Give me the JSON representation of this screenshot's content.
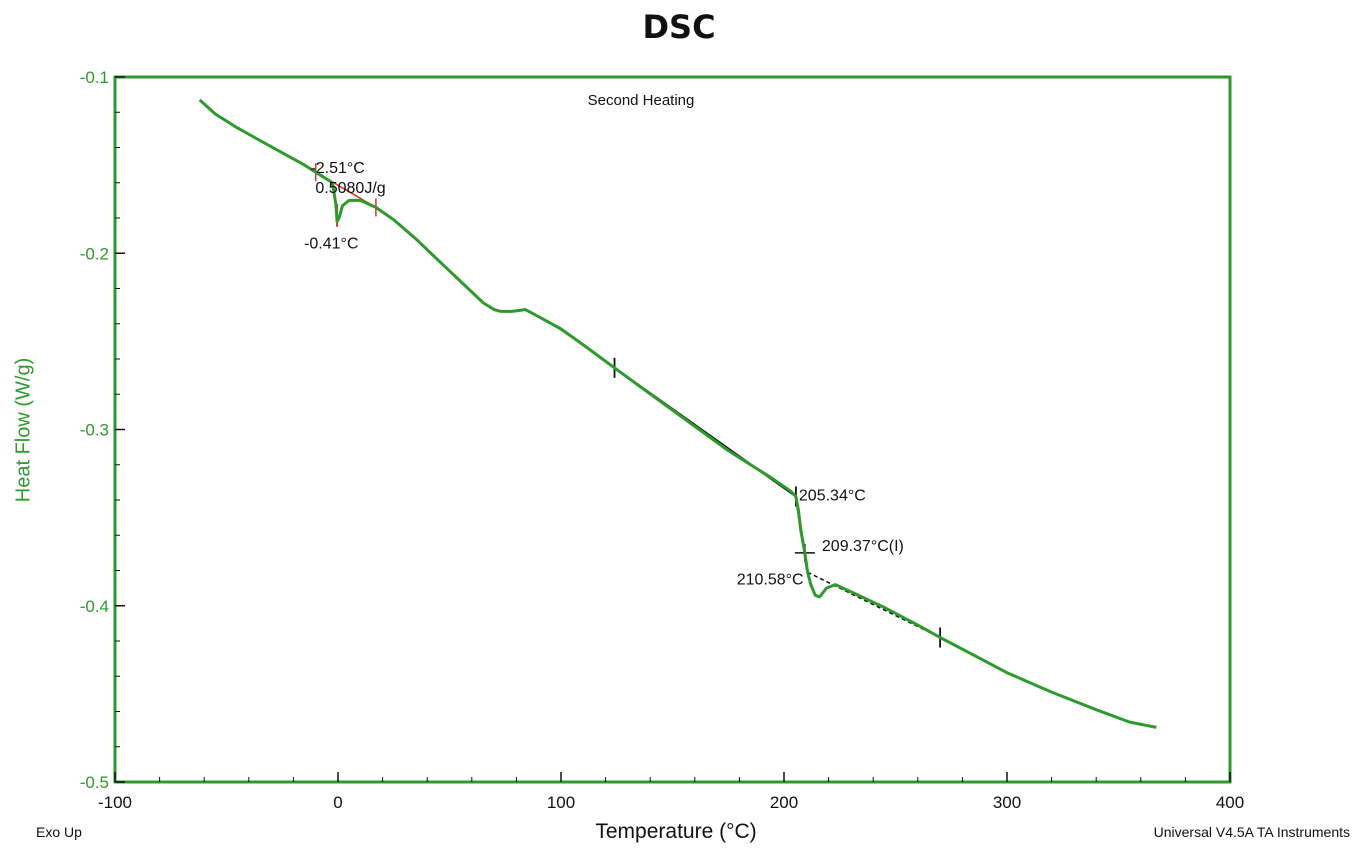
{
  "title": "DSC",
  "footer": {
    "left": "Exo Up",
    "right": "Universal V4.5A TA Instruments"
  },
  "colors": {
    "curve": "#2e9a2e",
    "axis": "#2e9a2e",
    "analysis_red": "#e03030",
    "analysis_black": "#111111"
  },
  "chart_data": {
    "type": "line",
    "subtitle": "Second Heating",
    "xlabel": "Temperature (°C)",
    "ylabel": "Heat Flow (W/g)",
    "xlim": [
      -100,
      400
    ],
    "ylim": [
      -0.5,
      -0.1
    ],
    "xticks": [
      -100,
      0,
      100,
      200,
      300,
      400
    ],
    "xtick_labels": [
      "-100",
      "0",
      "100",
      "200",
      "300",
      "400"
    ],
    "yticks": [
      -0.1,
      -0.2,
      -0.3,
      -0.4,
      -0.5
    ],
    "ytick_labels": [
      "-0.1",
      "-0.2",
      "-0.3",
      "-0.4",
      "-0.5"
    ],
    "grid": false,
    "series": [
      {
        "x": [
          -62,
          -55,
          -45,
          -35,
          -25,
          -15,
          -10,
          -5,
          -2.5,
          -1,
          -0.4,
          0.5,
          2,
          5,
          10,
          17,
          25,
          35,
          45,
          55,
          65,
          70,
          73,
          78,
          84,
          90,
          100,
          110,
          125,
          150,
          175,
          195,
          203,
          205.34,
          206.5,
          207.5,
          209.37,
          210.58,
          212,
          214,
          216,
          219,
          223,
          230,
          245,
          260,
          270,
          285,
          300,
          320,
          340,
          355,
          367
        ],
        "y": [
          -0.113,
          -0.121,
          -0.129,
          -0.136,
          -0.143,
          -0.15,
          -0.154,
          -0.158,
          -0.16,
          -0.172,
          -0.182,
          -0.18,
          -0.173,
          -0.17,
          -0.17,
          -0.174,
          -0.181,
          -0.192,
          -0.204,
          -0.216,
          -0.228,
          -0.232,
          -0.233,
          -0.233,
          -0.232,
          -0.236,
          -0.243,
          -0.252,
          -0.266,
          -0.289,
          -0.312,
          -0.328,
          -0.335,
          -0.338,
          -0.346,
          -0.357,
          -0.37,
          -0.381,
          -0.388,
          -0.394,
          -0.395,
          -0.39,
          -0.388,
          -0.392,
          -0.401,
          -0.411,
          -0.418,
          -0.428,
          -0.438,
          -0.449,
          -0.459,
          -0.466,
          -0.469
        ]
      }
    ],
    "annotations": [
      {
        "text": "-2.51°C",
        "x": -2.51,
        "y": -0.16
      },
      {
        "text": "0.5080J/g",
        "x": -2.51,
        "y": -0.16
      },
      {
        "text": "-0.41°C",
        "x": -0.41,
        "y": -0.182
      },
      {
        "text": "205.34°C",
        "x": 205.34,
        "y": -0.338
      },
      {
        "text": "209.37°C(I)",
        "x": 209.37,
        "y": -0.37
      },
      {
        "text": "210.58°C",
        "x": 210.58,
        "y": -0.381
      }
    ]
  }
}
